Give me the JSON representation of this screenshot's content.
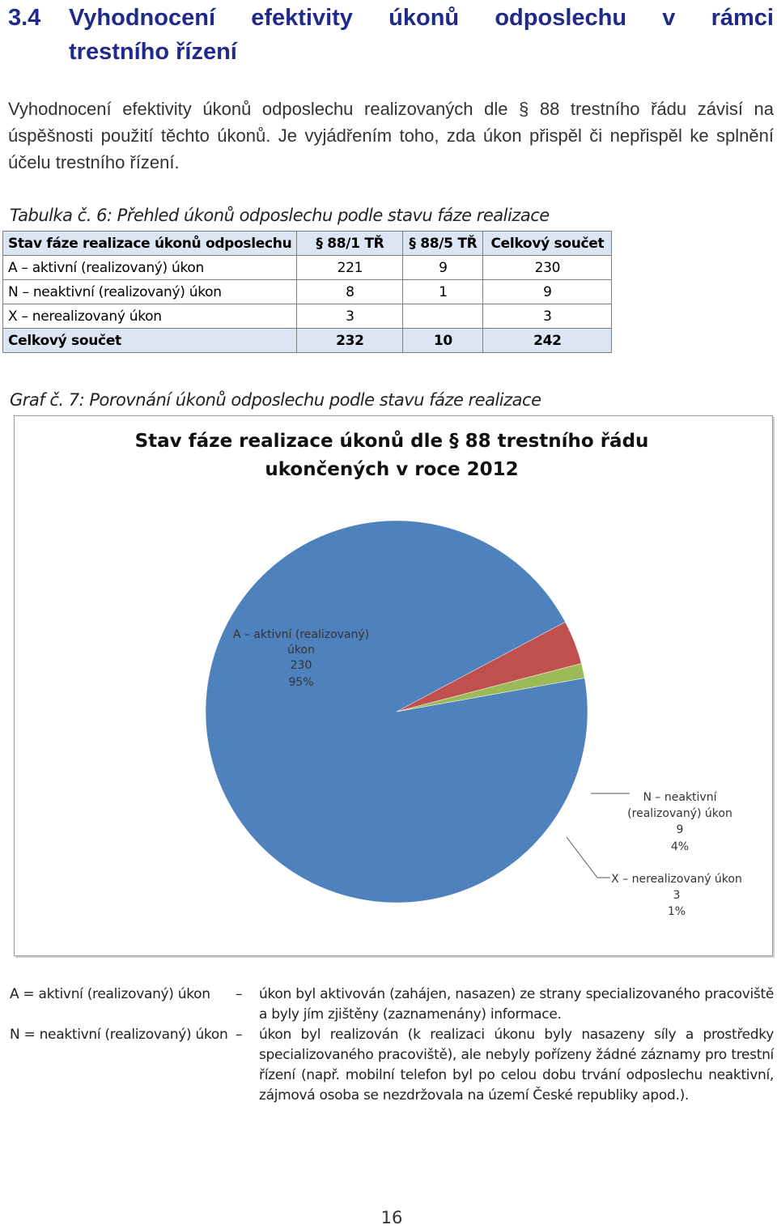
{
  "heading": {
    "number": "3.4",
    "line1": "Vyhodnocení efektivity úkonů odposlechu v rámci",
    "line2": "trestního řízení"
  },
  "intro": "Vyhodnocení efektivity úkonů odposlechu realizovaných dle § 88 trestního řádu závisí na úspěšnosti použití těchto úkonů. Je vyjádřením toho, zda úkon přispěl či nepřispěl ke splnění účelu trestního řízení.",
  "table_caption": "Tabulka č. 6: Přehled úkonů odposlechu podle stavu fáze realizace",
  "table": {
    "headers": [
      "Stav fáze realizace úkonů odposlechu",
      "§ 88/1 TŘ",
      "§ 88/5 TŘ",
      "Celkový součet"
    ],
    "rows": [
      [
        "A – aktivní (realizovaný) úkon",
        "221",
        "9",
        "230"
      ],
      [
        "N – neaktivní (realizovaný) úkon",
        "8",
        "1",
        "9"
      ],
      [
        "X – nerealizovaný úkon",
        "3",
        "",
        "3"
      ]
    ],
    "total": [
      "Celkový součet",
      "232",
      "10",
      "242"
    ]
  },
  "graph_caption": "Graf č. 7: Porovnání úkonů odposlechu podle stavu fáze realizace",
  "chart_data": {
    "type": "pie",
    "title": "Stav fáze realizace úkonů dle § 88 trestního řádu ukončených v roce 2012",
    "title_lines": [
      "Stav fáze realizace úkonů dle § 88 trestního řádu",
      "ukončených v roce 2012"
    ],
    "slices": [
      {
        "label": "A – aktivní (realizovaný) úkon",
        "label_lines": [
          "A – aktivní (realizovaný)",
          "úkon"
        ],
        "value": 230,
        "percent": "95%",
        "color": "#4f81bd"
      },
      {
        "label": "N – neaktivní (realizovaný) úkon",
        "label_lines": [
          "N – neaktivní",
          "(realizovaný) úkon"
        ],
        "value": 9,
        "percent": "4%",
        "color": "#c0504d"
      },
      {
        "label": "X – nerealizovaný úkon",
        "label_lines": [
          "X – nerealizovaný úkon"
        ],
        "value": 3,
        "percent": "1%",
        "color": "#9bbb59"
      }
    ]
  },
  "legend": [
    {
      "term": "A = aktivní (realizovaný) úkon",
      "dash": "–",
      "desc": "úkon byl aktivován (zahájen, nasazen) ze strany specializovaného pracoviště a byly jím zjištěny (zaznamenány) informace."
    },
    {
      "term": "N = neaktivní (realizovaný) úkon",
      "dash": "–",
      "desc": "úkon byl realizován (k realizaci úkonu byly nasazeny síly a prostředky specializovaného pracoviště), ale nebyly pořízeny žádné záznamy pro trestní řízení (např. mobilní telefon byl po celou dobu trvání odposlechu neaktivní, zájmová osoba se nezdržovala na území České republiky apod.)."
    }
  ],
  "page_number": "16"
}
